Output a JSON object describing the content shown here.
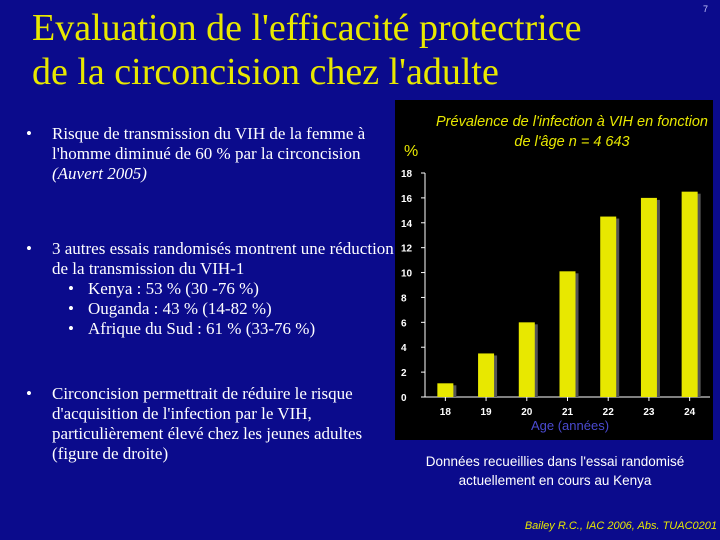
{
  "slide": {
    "title_line1": "Evaluation de l'efficacité protectrice",
    "title_line2": "de la circoncision chez l'adulte",
    "slide_number": "7"
  },
  "bullets": {
    "b1": {
      "dot": "•",
      "text": "Risque de transmission du VIH de la femme à l'homme diminué de 60 % par la circoncision",
      "citation": "(Auvert 2005)"
    },
    "b2": {
      "dot": "•",
      "text": "3 autres essais randomisés montrent une réduction de la transmission du VIH-1",
      "subs": [
        "Kenya : 53 % (30 -76 %)",
        "Ouganda : 43 % (14-82 %)",
        "Afrique du Sud : 61 % (33-76 %)"
      ]
    },
    "b3": {
      "dot": "•",
      "text": "Circoncision permettrait de réduire le risque d'acquisition de l'infection par le VIH, particulièrement élevé chez les jeunes adultes (figure de droite)"
    }
  },
  "chart_data": {
    "type": "bar",
    "title": "Prévalence de l'infection à VIH en fonction de l'âge n = 4 643",
    "ylabel": "%",
    "xlabel": "Age (années)",
    "categories": [
      "18",
      "19",
      "20",
      "21",
      "22",
      "23",
      "24"
    ],
    "values": [
      1.1,
      3.5,
      6.0,
      10.1,
      14.5,
      16.0,
      16.5
    ],
    "ylim": [
      0,
      18
    ],
    "yticks": [
      "0",
      "2",
      "4",
      "6",
      "8",
      "10",
      "12",
      "14",
      "16",
      "18"
    ],
    "bar_color": "#e8e800",
    "grid": false
  },
  "caption": "Données recueillies dans l'essai randomisé actuellement en cours au Kenya",
  "source": "Bailey R.C., IAC 2006, Abs. TUAC0201"
}
